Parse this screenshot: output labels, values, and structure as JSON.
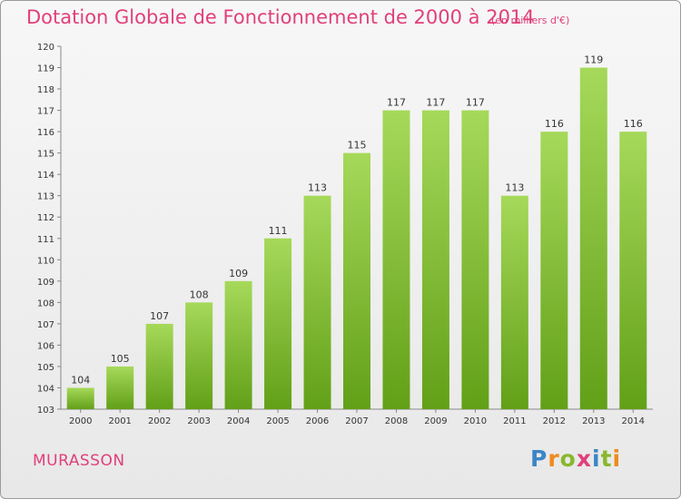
{
  "header": {
    "title": "Dotation Globale de Fonctionnement de 2000 à 2014",
    "unit": "(en milliers d'€)"
  },
  "footer": {
    "town": "MURASSON",
    "brand": "Proxiti"
  },
  "colors": {
    "accent": "#e0407a",
    "bar_top": "#a6d95a",
    "bar_bottom": "#62a018"
  },
  "chart_data": {
    "type": "bar",
    "title": "Dotation Globale de Fonctionnement de 2000 à 2014",
    "subtitle": "(en milliers d'€)",
    "categories": [
      "2000",
      "2001",
      "2002",
      "2003",
      "2004",
      "2005",
      "2006",
      "2007",
      "2008",
      "2009",
      "2010",
      "2011",
      "2012",
      "2013",
      "2014"
    ],
    "values": [
      104,
      105,
      107,
      108,
      109,
      111,
      113,
      115,
      117,
      117,
      117,
      113,
      116,
      119,
      116
    ],
    "ylim": [
      103,
      120
    ],
    "yticks": [
      103,
      104,
      105,
      106,
      107,
      108,
      109,
      110,
      111,
      112,
      113,
      114,
      115,
      116,
      117,
      118,
      119,
      120
    ],
    "grid": false,
    "legend": "none"
  }
}
